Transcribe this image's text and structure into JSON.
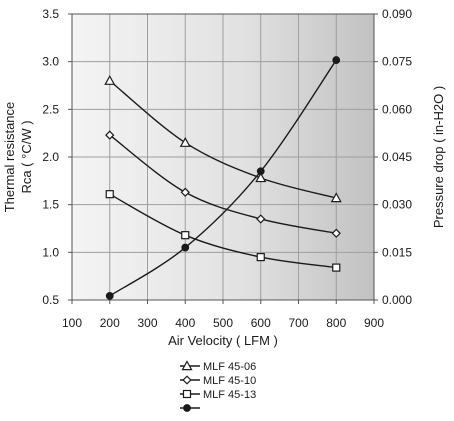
{
  "chart_data": {
    "type": "line",
    "xlabel": "Air Velocity ( LFM )",
    "ylabel_lines": [
      "Thermal resistance",
      "Rca ( °C/W )"
    ],
    "y2label": "Pressure drop ( in-H2O )",
    "xlim": [
      100,
      900
    ],
    "ylim": [
      0.5,
      3.5
    ],
    "y2lim": [
      0.0,
      0.09
    ],
    "x_ticks": [
      "100",
      "200",
      "300",
      "400",
      "500",
      "600",
      "700",
      "800",
      "900"
    ],
    "y_ticks": [
      "0.5",
      "1.0",
      "1.5",
      "2.0",
      "2.5",
      "3.0",
      "3.5"
    ],
    "y2_ticks": [
      "0.000",
      "0.015",
      "0.030",
      "0.045",
      "0.060",
      "0.075",
      "0.090"
    ],
    "grid": true,
    "legend_position": "bottom",
    "series": [
      {
        "name": "MLF 45-06",
        "marker": "triangle",
        "axis": "left",
        "x": [
          200,
          400,
          600,
          800
        ],
        "y": [
          2.8,
          2.15,
          1.78,
          1.57
        ]
      },
      {
        "name": "MLF 45-10",
        "marker": "diamond",
        "axis": "left",
        "x": [
          200,
          400,
          600,
          800
        ],
        "y": [
          2.23,
          1.63,
          1.35,
          1.2
        ]
      },
      {
        "name": "MLF 45-13",
        "marker": "square",
        "axis": "left",
        "x": [
          200,
          400,
          600,
          800
        ],
        "y": [
          1.61,
          1.18,
          0.95,
          0.84
        ]
      },
      {
        "name": "",
        "marker": "circle",
        "axis": "right",
        "x": [
          200,
          400,
          600,
          800
        ],
        "y": [
          0.0013,
          0.0165,
          0.0405,
          0.0755
        ]
      }
    ]
  }
}
